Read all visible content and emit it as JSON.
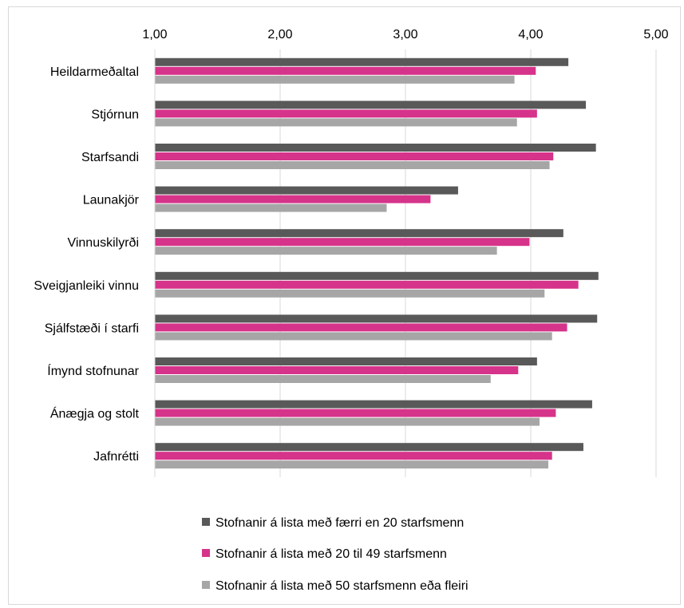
{
  "chart_data": {
    "type": "bar",
    "orientation": "horizontal",
    "title": "",
    "xlabel": "",
    "ylabel": "",
    "xlim": [
      1,
      5
    ],
    "x_ticks": [
      "1,00",
      "2,00",
      "3,00",
      "4,00",
      "5,00"
    ],
    "x_tick_values": [
      1,
      2,
      3,
      4,
      5
    ],
    "x_axis_position": "top",
    "grid": true,
    "legend_position": "bottom",
    "categories": [
      "Heildarmeðaltal",
      "Stjórnun",
      "Starfsandi",
      "Launakjör",
      "Vinnuskilyrði",
      "Sveigjanleiki vinnu",
      "Sjálfstæði í starfi",
      "Ímynd stofnunar",
      "Ánægja og stolt",
      "Jafnrétti"
    ],
    "series": [
      {
        "name": "Stofnanir á lista með færri en 20 starfsmenn",
        "color": "#595959",
        "values": [
          4.3,
          4.44,
          4.52,
          3.42,
          4.26,
          4.54,
          4.53,
          4.05,
          4.49,
          4.42
        ]
      },
      {
        "name": "Stofnanir á lista með 20 til 49 starfsmenn",
        "color": "#d6338a",
        "values": [
          4.04,
          4.05,
          4.18,
          3.2,
          3.99,
          4.38,
          4.29,
          3.9,
          4.2,
          4.17
        ]
      },
      {
        "name": "Stofnanir á lista með 50 starfsmenn eða fleiri",
        "color": "#a6a6a6",
        "values": [
          3.87,
          3.89,
          4.15,
          2.85,
          3.73,
          4.11,
          4.17,
          3.68,
          4.07,
          4.14
        ]
      }
    ]
  }
}
